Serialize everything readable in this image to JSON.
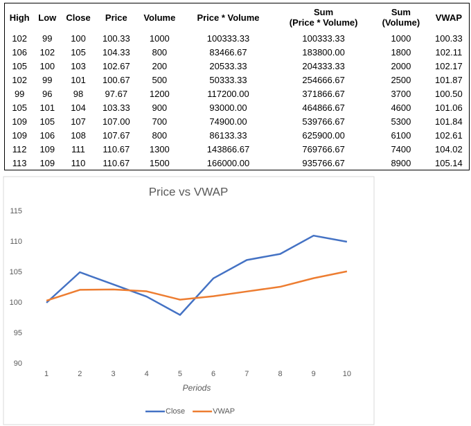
{
  "table": {
    "headers": [
      "High",
      "Low",
      "Close",
      "Price",
      "Volume",
      "Price * Volume",
      "Sum\n(Price * Volume)",
      "Sum\n(Volume)",
      "VWAP"
    ],
    "rows": [
      [
        "102",
        "99",
        "100",
        "100.33",
        "1000",
        "100333.33",
        "100333.33",
        "1000",
        "100.33"
      ],
      [
        "106",
        "102",
        "105",
        "104.33",
        "800",
        "83466.67",
        "183800.00",
        "1800",
        "102.11"
      ],
      [
        "105",
        "100",
        "103",
        "102.67",
        "200",
        "20533.33",
        "204333.33",
        "2000",
        "102.17"
      ],
      [
        "102",
        "99",
        "101",
        "100.67",
        "500",
        "50333.33",
        "254666.67",
        "2500",
        "101.87"
      ],
      [
        "99",
        "96",
        "98",
        "97.67",
        "1200",
        "117200.00",
        "371866.67",
        "3700",
        "100.50"
      ],
      [
        "105",
        "101",
        "104",
        "103.33",
        "900",
        "93000.00",
        "464866.67",
        "4600",
        "101.06"
      ],
      [
        "109",
        "105",
        "107",
        "107.00",
        "700",
        "74900.00",
        "539766.67",
        "5300",
        "101.84"
      ],
      [
        "109",
        "106",
        "108",
        "107.67",
        "800",
        "86133.33",
        "625900.00",
        "6100",
        "102.61"
      ],
      [
        "112",
        "109",
        "111",
        "110.67",
        "1300",
        "143866.67",
        "769766.67",
        "7400",
        "104.02"
      ],
      [
        "113",
        "109",
        "110",
        "110.67",
        "1500",
        "166000.00",
        "935766.67",
        "8900",
        "105.14"
      ]
    ]
  },
  "chart_data": {
    "type": "line",
    "title": "Price vs VWAP",
    "x_label": "Periods",
    "categories": [
      "1",
      "2",
      "3",
      "4",
      "5",
      "6",
      "7",
      "8",
      "9",
      "10"
    ],
    "series": [
      {
        "name": "Close",
        "color": "#4472c4",
        "values": [
          100,
          105,
          103,
          101,
          98,
          104,
          107,
          108,
          111,
          110
        ]
      },
      {
        "name": "VWAP",
        "color": "#ed7d31",
        "values": [
          100.33,
          102.11,
          102.17,
          101.87,
          100.5,
          101.06,
          101.84,
          102.61,
          104.02,
          105.14
        ]
      }
    ],
    "ylim": [
      90,
      115
    ],
    "yticks": [
      90,
      95,
      100,
      105,
      110,
      115
    ],
    "grid": false,
    "legend": "bottom"
  }
}
